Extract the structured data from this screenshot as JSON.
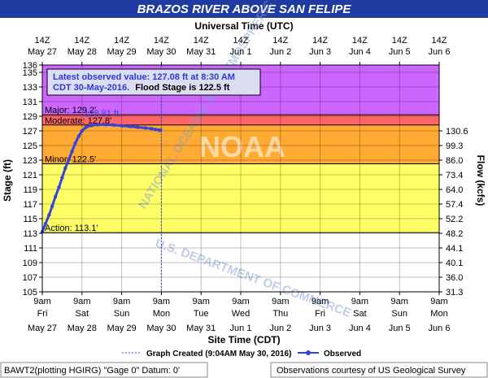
{
  "header": {
    "title": "BRAZOS RIVER ABOVE SAN FELIPE",
    "title_bg": "#1f3aa0",
    "top_axis_title": "Universal Time (UTC)",
    "bottom_axis_title": "Site Time (CDT)"
  },
  "info_box": {
    "line1": "Latest observed value: 127.08 ft at 8:30 AM",
    "line2a": "CDT 30-May-2016.",
    "line2b": "Flood Stage is 122.5 ft"
  },
  "legend": {
    "graph_created": "Graph Created (9:04AM May 30, 2016)",
    "observed": "Observed"
  },
  "footer": {
    "left": "BAWT2(plotting HGIRG) \"Gage 0\" Datum: 0'",
    "right": "Observations courtesy of US Geological Survey"
  },
  "watermark": {
    "top_text": "NATIONAL OCEANIC AND ATMOSPHERIC ADMINISTRATION",
    "bottom_text": "U.S. DEPARTMENT OF COMMERCE",
    "center": "NOAA"
  },
  "chart_data": {
    "type": "line",
    "title": "BRAZOS RIVER ABOVE SAN FELIPE",
    "ylabel": "Stage (ft)",
    "y2label": "Flow (kcfs)",
    "ylim": [
      105,
      136
    ],
    "xlim_days": [
      "May 27 9am",
      "Jun 6 9am"
    ],
    "y_ticks": [
      105,
      107,
      109,
      111,
      113,
      115,
      117,
      119,
      121,
      123,
      125,
      127,
      129,
      131,
      133,
      135,
      136
    ],
    "flow_ticks": [
      {
        "stage": 105,
        "label": "31.3"
      },
      {
        "stage": 107,
        "label": "36.0"
      },
      {
        "stage": 109,
        "label": "40.1"
      },
      {
        "stage": 111,
        "label": "44.1"
      },
      {
        "stage": 113,
        "label": "48.2"
      },
      {
        "stage": 115,
        "label": "52.2"
      },
      {
        "stage": 117,
        "label": "57.4"
      },
      {
        "stage": 119,
        "label": "64.0"
      },
      {
        "stage": 121,
        "label": "73.4"
      },
      {
        "stage": 123,
        "label": "86.0"
      },
      {
        "stage": 125,
        "label": "99.3"
      },
      {
        "stage": 127,
        "label": "130.6"
      }
    ],
    "top_ticks": [
      {
        "hour": "14Z",
        "date": "May 27"
      },
      {
        "hour": "14Z",
        "date": "May 28"
      },
      {
        "hour": "14Z",
        "date": "May 29"
      },
      {
        "hour": "14Z",
        "date": "May 30"
      },
      {
        "hour": "14Z",
        "date": "May 31"
      },
      {
        "hour": "14Z",
        "date": "Jun 1"
      },
      {
        "hour": "14Z",
        "date": "Jun 2"
      },
      {
        "hour": "14Z",
        "date": "Jun 3"
      },
      {
        "hour": "14Z",
        "date": "Jun 4"
      },
      {
        "hour": "14Z",
        "date": "Jun 5"
      },
      {
        "hour": "14Z",
        "date": "Jun 6"
      }
    ],
    "bottom_ticks": [
      {
        "time": "9am",
        "day": "Fri",
        "date": "May 27"
      },
      {
        "time": "9am",
        "day": "Sat",
        "date": "May 28"
      },
      {
        "time": "9am",
        "day": "Sun",
        "date": "May 29"
      },
      {
        "time": "9am",
        "day": "Mon",
        "date": "May 30"
      },
      {
        "time": "9am",
        "day": "Tue",
        "date": "May 31"
      },
      {
        "time": "9am",
        "day": "Wed",
        "date": "Jun 1"
      },
      {
        "time": "9am",
        "day": "Thu",
        "date": "Jun 2"
      },
      {
        "time": "9am",
        "day": "Fri",
        "date": "Jun 3"
      },
      {
        "time": "9am",
        "day": "Sat",
        "date": "Jun 4"
      },
      {
        "time": "9am",
        "day": "Sun",
        "date": "Jun 5"
      },
      {
        "time": "9am",
        "day": "Mon",
        "date": "Jun 6"
      }
    ],
    "flood_bands": [
      {
        "name": "Major",
        "label": "Major: 129.2'",
        "from": 129.2,
        "to": 136,
        "color": "#cc66ff"
      },
      {
        "name": "Moderate",
        "label": "Moderate: 127.8'",
        "from": 127.8,
        "to": 129.2,
        "color": "#ff6666"
      },
      {
        "name": "Minor",
        "label": "Minor: 122.5'",
        "from": 122.5,
        "to": 127.8,
        "color": "#ffaa33"
      },
      {
        "name": "Action",
        "label": "Action: 113.1'",
        "from": 113.1,
        "to": 122.5,
        "color": "#ffff66"
      }
    ],
    "crest_label": "128.81 ft",
    "graph_created_day": 3.0,
    "series": [
      {
        "name": "Observed",
        "color": "#3344dd",
        "points": [
          {
            "day": 0.0,
            "stage": 113.2
          },
          {
            "day": 0.08,
            "stage": 114.3
          },
          {
            "day": 0.17,
            "stage": 115.5
          },
          {
            "day": 0.25,
            "stage": 116.7
          },
          {
            "day": 0.33,
            "stage": 118.0
          },
          {
            "day": 0.42,
            "stage": 119.3
          },
          {
            "day": 0.5,
            "stage": 120.6
          },
          {
            "day": 0.58,
            "stage": 121.9
          },
          {
            "day": 0.67,
            "stage": 123.1
          },
          {
            "day": 0.75,
            "stage": 124.2
          },
          {
            "day": 0.83,
            "stage": 125.3
          },
          {
            "day": 0.92,
            "stage": 126.3
          },
          {
            "day": 1.0,
            "stage": 127.0
          },
          {
            "day": 1.1,
            "stage": 127.5
          },
          {
            "day": 1.25,
            "stage": 127.75
          },
          {
            "day": 1.4,
            "stage": 127.85
          },
          {
            "day": 1.6,
            "stage": 127.85
          },
          {
            "day": 1.8,
            "stage": 127.8
          },
          {
            "day": 2.0,
            "stage": 127.7
          },
          {
            "day": 2.2,
            "stage": 127.6
          },
          {
            "day": 2.4,
            "stage": 127.5
          },
          {
            "day": 2.6,
            "stage": 127.4
          },
          {
            "day": 2.75,
            "stage": 127.3
          },
          {
            "day": 2.85,
            "stage": 127.2
          },
          {
            "day": 2.94,
            "stage": 127.1
          },
          {
            "day": 2.98,
            "stage": 127.08
          }
        ]
      }
    ]
  }
}
